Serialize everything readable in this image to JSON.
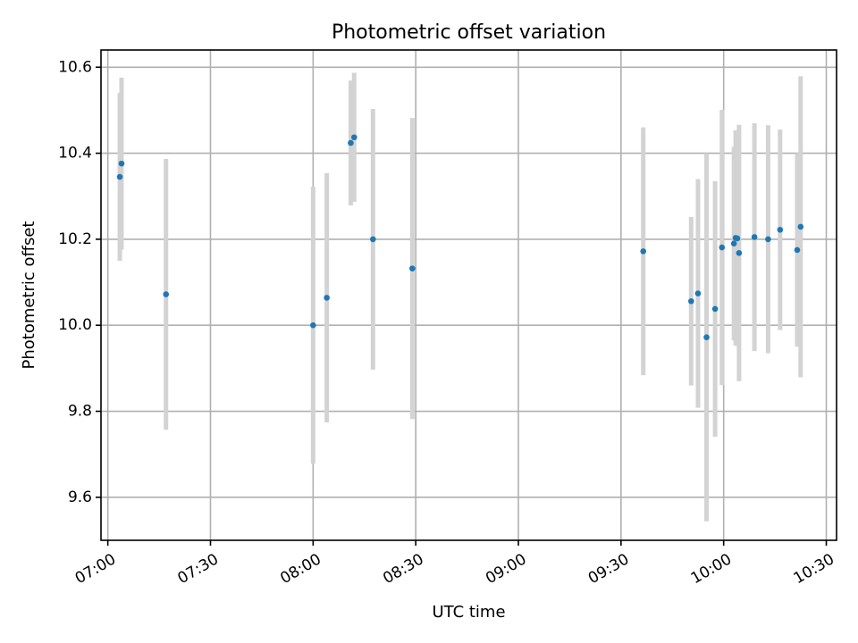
{
  "chart_data": {
    "type": "scatter",
    "title": "Photometric offset variation",
    "xlabel": "UTC time",
    "ylabel": "Photometric offset",
    "x_unit": "HH:MM UTC",
    "xlim": [
      "06:58",
      "10:33"
    ],
    "ylim": [
      9.5,
      10.64
    ],
    "x_ticks": [
      "07:00",
      "07:30",
      "08:00",
      "08:30",
      "09:00",
      "09:30",
      "10:00",
      "10:30"
    ],
    "y_ticks": [
      9.6,
      9.8,
      10.0,
      10.2,
      10.4,
      10.6
    ],
    "y_tick_labels": [
      "9.6",
      "9.8",
      "10.0",
      "10.2",
      "10.4",
      "10.6"
    ],
    "grid": true,
    "colors": {
      "points": "#1f77b4",
      "errorbars": "#d3d3d3",
      "grid": "#b0b0b0"
    },
    "series": [
      {
        "points": [
          {
            "x": "07:03:30",
            "y": 10.345,
            "err": 0.195
          },
          {
            "x": "07:04:00",
            "y": 10.376,
            "err": 0.2
          },
          {
            "x": "07:17:00",
            "y": 10.072,
            "err": 0.315
          },
          {
            "x": "08:00:00",
            "y": 10.0,
            "err": 0.322
          },
          {
            "x": "08:04:00",
            "y": 10.064,
            "err": 0.29
          },
          {
            "x": "08:11:00",
            "y": 10.424,
            "err": 0.145
          },
          {
            "x": "08:12:00",
            "y": 10.437,
            "err": 0.15
          },
          {
            "x": "08:17:30",
            "y": 10.2,
            "err": 0.303
          },
          {
            "x": "08:29:00",
            "y": 10.132,
            "err": 0.35
          },
          {
            "x": "09:36:30",
            "y": 10.172,
            "err": 0.288
          },
          {
            "x": "09:50:30",
            "y": 10.056,
            "err": 0.196
          },
          {
            "x": "09:52:30",
            "y": 10.074,
            "err": 0.266
          },
          {
            "x": "09:55:00",
            "y": 9.972,
            "err": 0.428
          },
          {
            "x": "09:57:30",
            "y": 10.038,
            "err": 0.297
          },
          {
            "x": "09:59:30",
            "y": 10.181,
            "err": 0.32
          },
          {
            "x": "10:03:00",
            "y": 10.19,
            "err": 0.225
          },
          {
            "x": "10:03:30",
            "y": 10.203,
            "err": 0.25
          },
          {
            "x": "10:04:00",
            "y": 10.202,
            "err": 0.25
          },
          {
            "x": "10:04:30",
            "y": 10.168,
            "err": 0.298
          },
          {
            "x": "10:09:00",
            "y": 10.205,
            "err": 0.265
          },
          {
            "x": "10:13:00",
            "y": 10.2,
            "err": 0.265
          },
          {
            "x": "10:16:30",
            "y": 10.222,
            "err": 0.233
          },
          {
            "x": "10:21:30",
            "y": 10.175,
            "err": 0.225
          },
          {
            "x": "10:22:30",
            "y": 10.229,
            "err": 0.35
          }
        ]
      }
    ]
  }
}
